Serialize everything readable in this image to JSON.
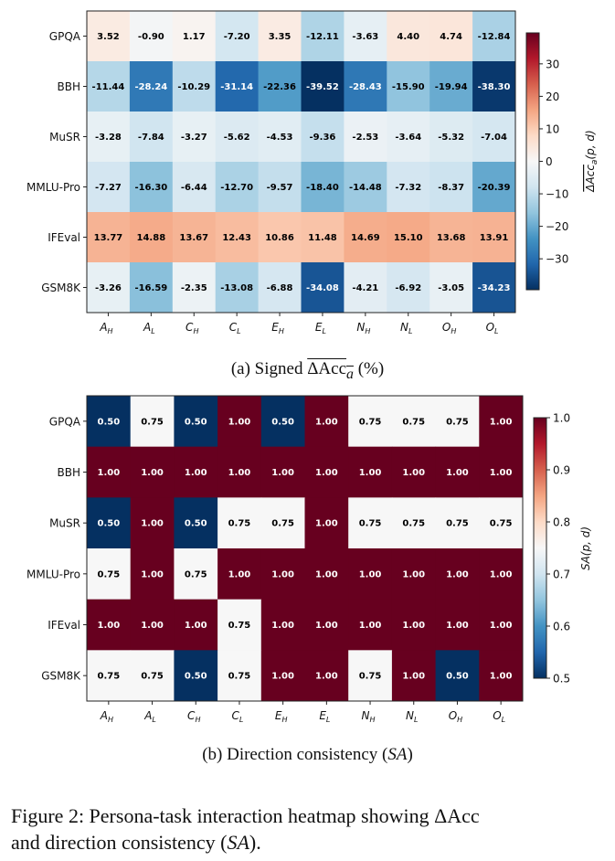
{
  "chart_data": [
    {
      "type": "heatmap",
      "id": "signed",
      "title": "",
      "rows": [
        "GPQA",
        "BBH",
        "MuSR",
        "MMLU-Pro",
        "IFEval",
        "GSM8K"
      ],
      "columns": [
        {
          "base": "A",
          "sub": "H"
        },
        {
          "base": "A",
          "sub": "L"
        },
        {
          "base": "C",
          "sub": "H"
        },
        {
          "base": "C",
          "sub": "L"
        },
        {
          "base": "E",
          "sub": "H"
        },
        {
          "base": "E",
          "sub": "L"
        },
        {
          "base": "N",
          "sub": "H"
        },
        {
          "base": "N",
          "sub": "L"
        },
        {
          "base": "O",
          "sub": "H"
        },
        {
          "base": "O",
          "sub": "L"
        }
      ],
      "values": [
        [
          3.52,
          -0.9,
          1.17,
          -7.2,
          3.35,
          -12.11,
          -3.63,
          4.4,
          4.74,
          -12.84
        ],
        [
          -11.44,
          -28.24,
          -10.29,
          -31.14,
          -22.36,
          -39.52,
          -28.43,
          -15.9,
          -19.94,
          -38.3
        ],
        [
          -3.28,
          -7.84,
          -3.27,
          -5.62,
          -4.53,
          -9.36,
          -2.53,
          -3.64,
          -5.32,
          -7.04
        ],
        [
          -7.27,
          -16.3,
          -6.44,
          -12.7,
          -9.57,
          -18.4,
          -14.48,
          -7.32,
          -8.37,
          -20.39
        ],
        [
          13.77,
          14.88,
          13.67,
          12.43,
          10.86,
          11.48,
          14.69,
          15.1,
          13.68,
          13.91
        ],
        [
          -3.26,
          -16.59,
          -2.35,
          -13.08,
          -6.88,
          -34.08,
          -4.21,
          -6.92,
          -3.05,
          -34.23
        ]
      ],
      "colormap": "RdBu_r",
      "vmin": -39.52,
      "vmax": 39.52,
      "colorbar": {
        "label": "ΔAcc_a(p, d)",
        "label_base": "ΔAcc",
        "label_sub": "a",
        "label_args": "(p, d)",
        "ticks": [
          30,
          20,
          10,
          0,
          -10,
          -20,
          -30
        ],
        "tick_labels": [
          "30",
          "20",
          "10",
          "0",
          "−10",
          "−20",
          "−30"
        ]
      },
      "subcaption": {
        "prefix": "(a) Signed ",
        "symbol": "ΔAcc",
        "sub": "a",
        "suffix": " (%)"
      }
    },
    {
      "type": "heatmap",
      "id": "consistency",
      "title": "",
      "rows": [
        "GPQA",
        "BBH",
        "MuSR",
        "MMLU-Pro",
        "IFEval",
        "GSM8K"
      ],
      "columns": [
        {
          "base": "A",
          "sub": "H"
        },
        {
          "base": "A",
          "sub": "L"
        },
        {
          "base": "C",
          "sub": "H"
        },
        {
          "base": "C",
          "sub": "L"
        },
        {
          "base": "E",
          "sub": "H"
        },
        {
          "base": "E",
          "sub": "L"
        },
        {
          "base": "N",
          "sub": "H"
        },
        {
          "base": "N",
          "sub": "L"
        },
        {
          "base": "O",
          "sub": "H"
        },
        {
          "base": "O",
          "sub": "L"
        }
      ],
      "values": [
        [
          0.5,
          0.75,
          0.5,
          1.0,
          0.5,
          1.0,
          0.75,
          0.75,
          0.75,
          1.0
        ],
        [
          1.0,
          1.0,
          1.0,
          1.0,
          1.0,
          1.0,
          1.0,
          1.0,
          1.0,
          1.0
        ],
        [
          0.5,
          1.0,
          0.5,
          0.75,
          0.75,
          1.0,
          0.75,
          0.75,
          0.75,
          0.75
        ],
        [
          0.75,
          1.0,
          0.75,
          1.0,
          1.0,
          1.0,
          1.0,
          1.0,
          1.0,
          1.0
        ],
        [
          1.0,
          1.0,
          1.0,
          0.75,
          1.0,
          1.0,
          1.0,
          1.0,
          1.0,
          1.0
        ],
        [
          0.75,
          0.75,
          0.5,
          0.75,
          1.0,
          1.0,
          0.75,
          1.0,
          0.5,
          1.0
        ]
      ],
      "colormap": "RdBu_r",
      "vmin": 0.5,
      "vmax": 1.0,
      "colorbar": {
        "label": "SA(p, d)",
        "ticks": [
          1.0,
          0.9,
          0.8,
          0.7,
          0.6,
          0.5
        ],
        "tick_labels": [
          "1.0",
          "0.9",
          "0.8",
          "0.7",
          "0.6",
          "0.5"
        ]
      },
      "subcaption": {
        "prefix": "(b) Direction consistency (",
        "symbol": "SA",
        "suffix": ")"
      }
    }
  ],
  "figure_caption": {
    "line1": "Figure 2:  Persona-task interaction heatmap showing ΔAcc",
    "line2_prefix": "and direction consistency (",
    "line2_symbol": "SA",
    "line2_suffix": ")."
  }
}
